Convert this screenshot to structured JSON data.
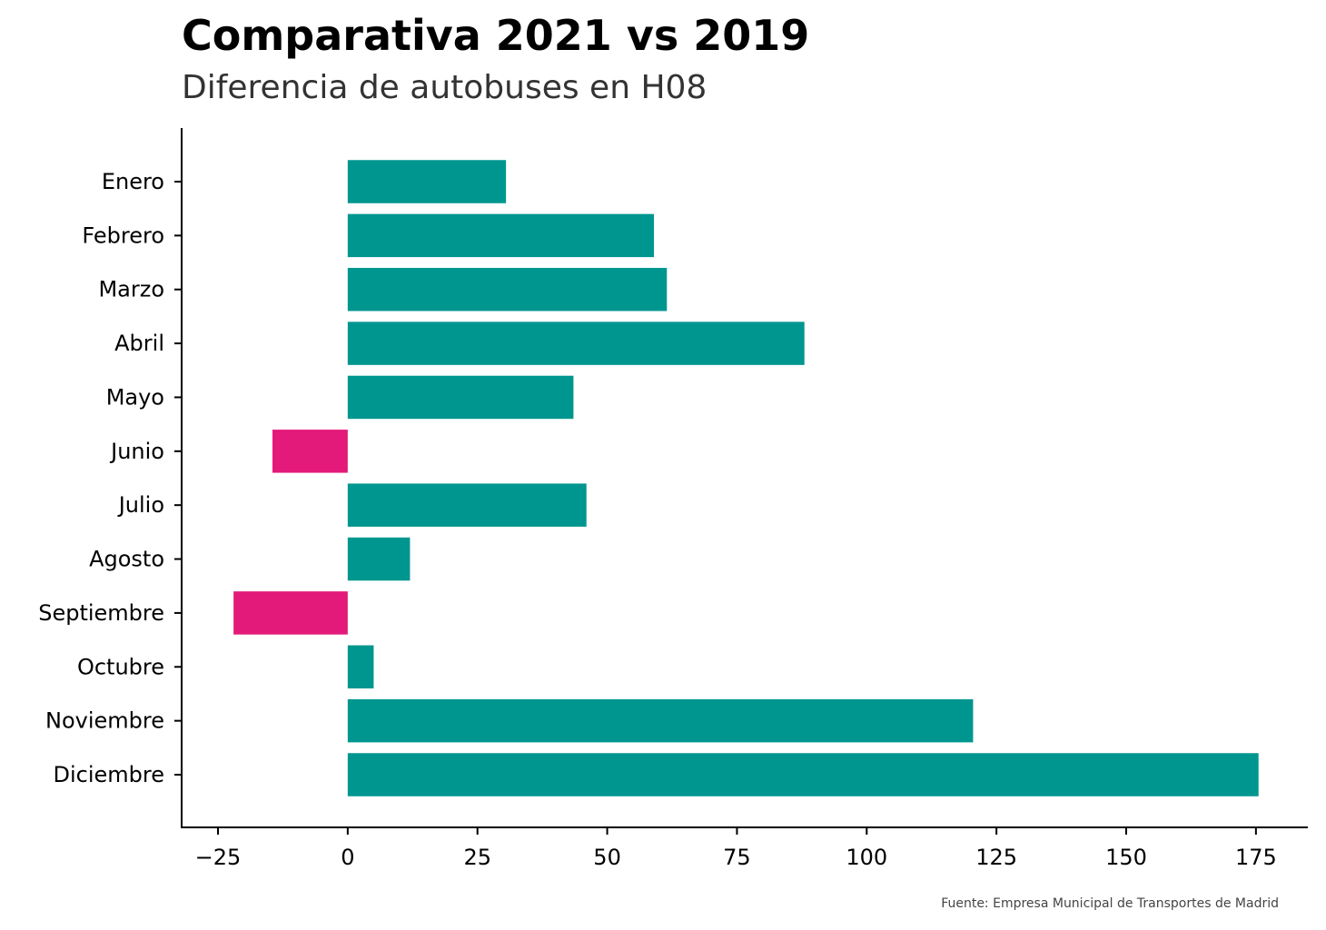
{
  "chart_data": {
    "type": "bar",
    "orientation": "horizontal",
    "title": "Comparativa 2021 vs 2019",
    "subtitle": "Diferencia de autobuses en H08",
    "source": "Fuente: Empresa Municipal de Transportes de Madrid",
    "categories": [
      "Enero",
      "Febrero",
      "Marzo",
      "Abril",
      "Mayo",
      "Junio",
      "Julio",
      "Agosto",
      "Septiembre",
      "Octubre",
      "Noviembre",
      "Diciembre"
    ],
    "values": [
      30.5,
      59,
      61.5,
      88,
      43.5,
      -14.5,
      46,
      12,
      -22,
      5,
      120.5,
      175.5
    ],
    "xlabel": "",
    "ylabel": "",
    "xlim": [
      -32,
      185
    ],
    "xticks": [
      -25,
      0,
      25,
      50,
      75,
      100,
      125,
      150,
      175
    ],
    "xtick_labels": [
      "−25",
      "0",
      "25",
      "50",
      "75",
      "100",
      "125",
      "150",
      "175"
    ],
    "grid": false,
    "legend": "none",
    "colors": {
      "positive": "#009690",
      "negative": "#e31a7a"
    }
  }
}
